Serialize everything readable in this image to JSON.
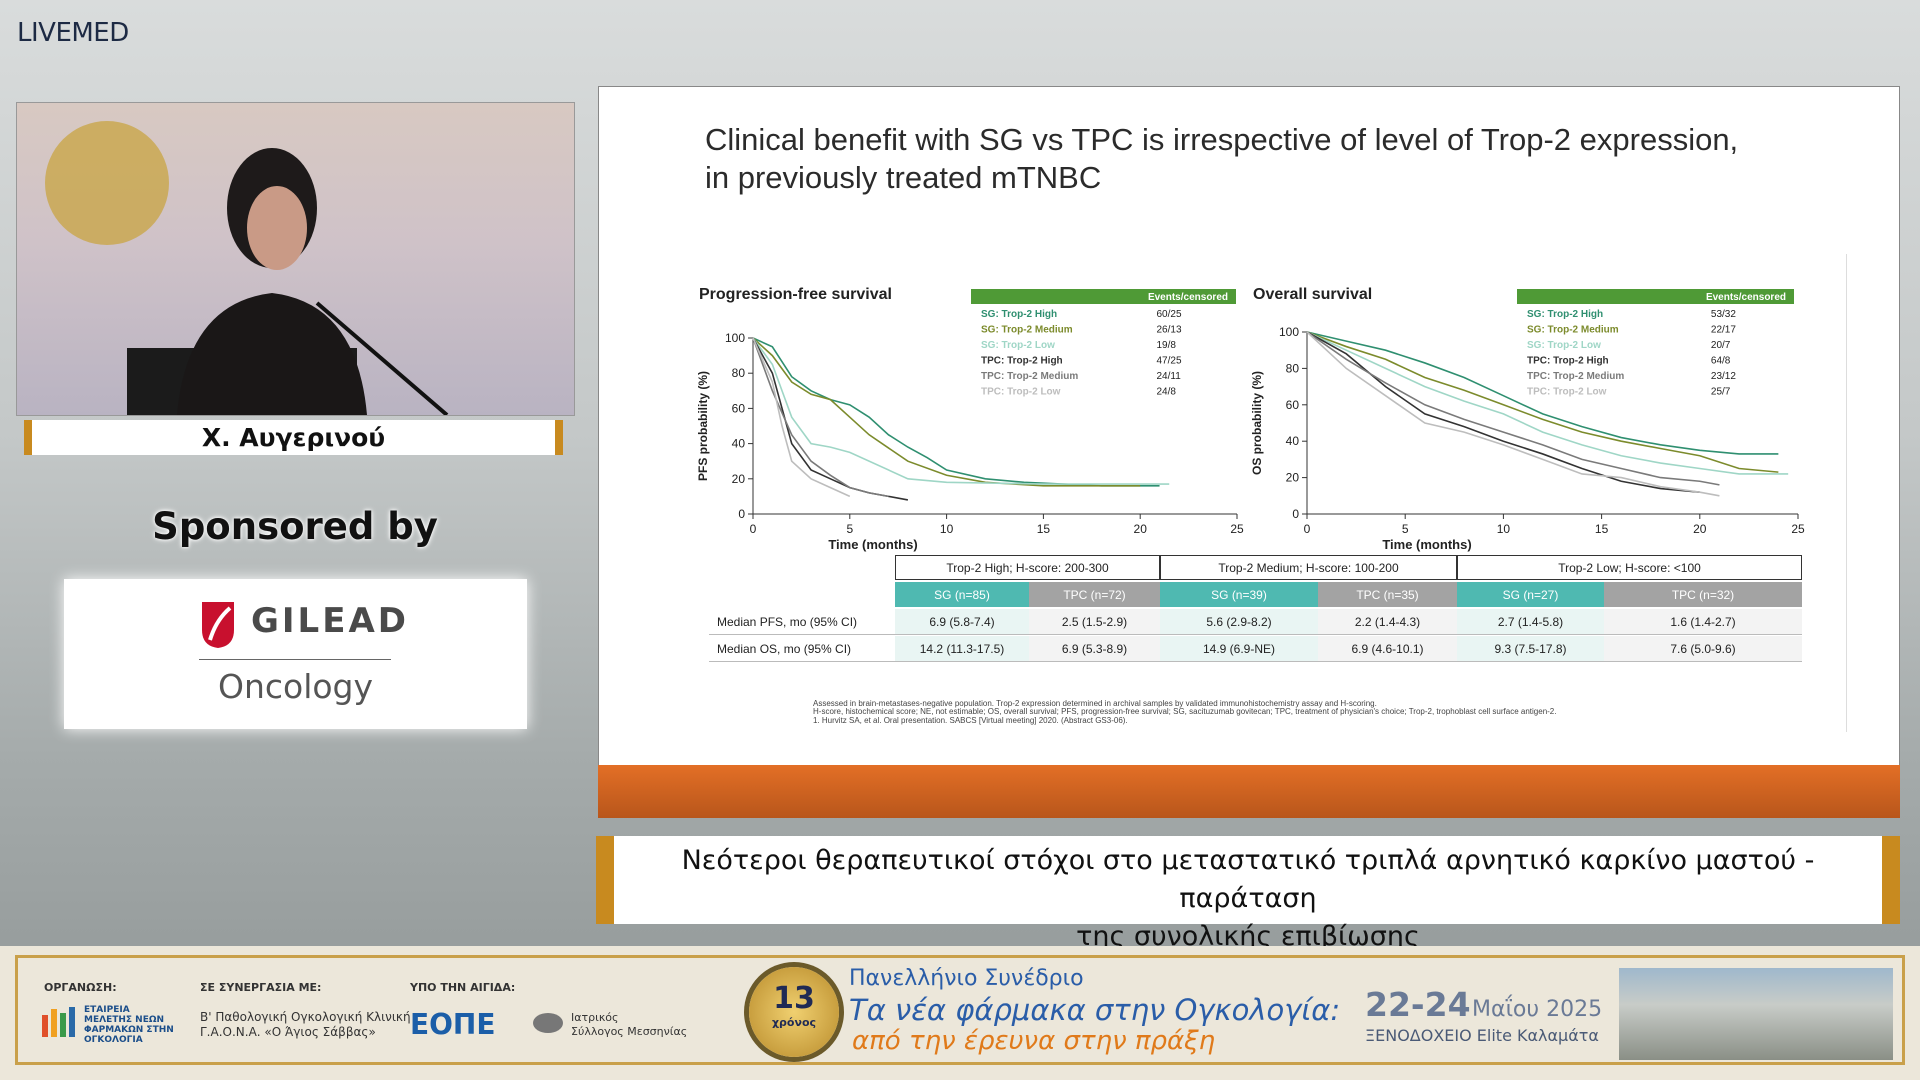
{
  "header": {
    "logo": "LIVEMED"
  },
  "speaker": {
    "name": "Χ. Αυγερινού"
  },
  "sponsor": {
    "label": "Sponsored by",
    "company": "GILEAD",
    "division": "Oncology"
  },
  "slide": {
    "title_line1": "Clinical benefit with SG vs TPC is irrespective of level of Trop-2 expression,",
    "title_line2": "in previously treated mTNBC",
    "table": {
      "groups": [
        "Trop-2 High; H-score: 200-300",
        "Trop-2 Medium; H-score: 100-200",
        "Trop-2 Low; H-score: <100"
      ],
      "subheaders": [
        "SG (n=85)",
        "TPC (n=72)",
        "SG (n=39)",
        "TPC (n=35)",
        "SG (n=27)",
        "TPC (n=32)"
      ],
      "rows": [
        [
          "Median PFS, mo (95% CI)",
          "6.9 (5.8-7.4)",
          "2.5 (1.5-2.9)",
          "5.6 (2.9-8.2)",
          "2.2 (1.4-4.3)",
          "2.7 (1.4-5.8)",
          "1.6 (1.4-2.7)"
        ],
        [
          "Median OS, mo (95% CI)",
          "14.2 (11.3-17.5)",
          "6.9 (5.3-8.9)",
          "14.9 (6.9-NE)",
          "6.9 (4.6-10.1)",
          "9.3 (7.5-17.8)",
          "7.6 (5.0-9.6)"
        ]
      ]
    },
    "footnotes": [
      "Assessed in brain-metastases-negative population. Trop-2 expression determined in archival samples by validated immunohistochemistry assay and H-scoring.",
      "H-score, histochemical score; NE, not estimable; OS, overall survival; PFS, progression-free survival; SG, sacituzumab govitecan; TPC, treatment of physician's choice; Trop-2, trophoblast cell surface antigen-2.",
      "1. Hurvitz SA, et al. Oral presentation. SABCS [Virtual meeting] 2020. (Abstract GS3-06)."
    ]
  },
  "caption": {
    "line1": "Νεότεροι θεραπευτικοί στόχοι στο μεταστατικό τριπλά αρνητικό καρκίνο μαστού - παράταση",
    "line2": "της συνολικής επιβίωσης"
  },
  "banner": {
    "org_label": "ΟΡΓΑΝΩΣΗ:",
    "org_name": "ΕΤΑΙΡΕΙΑ ΜΕΛΕΤΗΣ ΝΕΩΝ ΦΑΡΜΑΚΩΝ ΣΤΗΝ ΟΓΚΟΛΟΓΙΑ",
    "collab_label": "ΣΕ ΣΥΝΕΡΓΑΣΙΑ ΜΕ:",
    "collab_line1": "Β' Παθολογική Ογκολογική Κλινική",
    "collab_line2": "Γ.Α.Ο.Ν.Α. «Ο Άγιος Σάββας»",
    "auspices_label": "ΥΠΟ ΤΗΝ ΑΙΓΙΔΑ:",
    "eope": "ΕΟΠΕ",
    "association_line1": "Ιατρικός",
    "association_line2": "Σύλλογος Μεσσηνίας",
    "badge_number": "13",
    "badge_text": "χρόνος",
    "congress_line1": "Πανελλήνιο Συνέδριο",
    "congress_line2": "Τα νέα φάρμακα στην Ογκολογία:",
    "congress_line3": "από την έρευνα στην πράξη",
    "dates": "22-24",
    "month_year": "Μαΐου 2025",
    "venue": "ΞΕΝΟΔΟΧΕΙΟ Elite Καλαμάτα"
  },
  "chart_data": [
    {
      "type": "line",
      "title": "Progression-free survival",
      "xlabel": "Time (months)",
      "ylabel": "PFS probability (%)",
      "legend_title": "Events/censored",
      "xlim": [
        0,
        25
      ],
      "xticks": [
        0,
        5,
        10,
        15,
        20,
        25
      ],
      "ylim": [
        0,
        100
      ],
      "yticks": [
        0,
        20,
        40,
        60,
        80,
        100
      ],
      "series": [
        {
          "name": "SG: Trop-2 High",
          "events": "60/25",
          "color": "#2f8f70",
          "x": [
            0,
            1,
            2,
            3,
            4,
            5,
            6,
            7,
            8,
            9,
            10,
            12,
            14,
            16,
            18,
            20,
            21
          ],
          "values": [
            100,
            95,
            78,
            70,
            65,
            62,
            55,
            45,
            38,
            32,
            25,
            20,
            18,
            17,
            16,
            16,
            16
          ]
        },
        {
          "name": "SG: Trop-2 Medium",
          "events": "26/13",
          "color": "#7c8b2c",
          "x": [
            0,
            1,
            2,
            3,
            4,
            5,
            6,
            8,
            10,
            12,
            15,
            20
          ],
          "values": [
            100,
            90,
            75,
            68,
            65,
            55,
            45,
            30,
            22,
            18,
            16,
            16
          ]
        },
        {
          "name": "SG: Trop-2 Low",
          "events": "19/8",
          "color": "#9fd6c6",
          "x": [
            0,
            1,
            2,
            3,
            4,
            5,
            8,
            10,
            15,
            20,
            21.5
          ],
          "values": [
            100,
            85,
            55,
            40,
            38,
            35,
            20,
            18,
            17,
            17,
            17
          ]
        },
        {
          "name": "TPC: Trop-2 High",
          "events": "47/25",
          "color": "#333333",
          "x": [
            0,
            1,
            2,
            3,
            4,
            5,
            6,
            7,
            8
          ],
          "values": [
            100,
            80,
            40,
            25,
            20,
            15,
            12,
            10,
            8
          ]
        },
        {
          "name": "TPC: Trop-2 Medium",
          "events": "24/11",
          "color": "#7a7a7a",
          "x": [
            0,
            1,
            2,
            3,
            4,
            5,
            6,
            7
          ],
          "values": [
            100,
            70,
            45,
            30,
            22,
            15,
            12,
            10
          ]
        },
        {
          "name": "TPC: Trop-2 Low",
          "events": "24/8",
          "color": "#bdbdbd",
          "x": [
            0,
            1,
            1.5,
            2,
            3,
            4,
            5
          ],
          "values": [
            100,
            75,
            50,
            30,
            20,
            15,
            10
          ]
        }
      ]
    },
    {
      "type": "line",
      "title": "Overall survival",
      "xlabel": "Time (months)",
      "ylabel": "OS probability (%)",
      "legend_title": "Events/censored",
      "xlim": [
        0,
        25
      ],
      "xticks": [
        0,
        5,
        10,
        15,
        20,
        25
      ],
      "ylim": [
        0,
        100
      ],
      "yticks": [
        0,
        20,
        40,
        60,
        80,
        100
      ],
      "series": [
        {
          "name": "SG: Trop-2 High",
          "events": "53/32",
          "color": "#2f8f70",
          "x": [
            0,
            2,
            4,
            6,
            8,
            10,
            12,
            14,
            16,
            18,
            20,
            22,
            24
          ],
          "values": [
            100,
            95,
            90,
            83,
            75,
            65,
            55,
            48,
            42,
            38,
            35,
            33,
            33
          ]
        },
        {
          "name": "SG: Trop-2 Medium",
          "events": "22/17",
          "color": "#7c8b2c",
          "x": [
            0,
            2,
            4,
            6,
            8,
            10,
            12,
            14,
            16,
            18,
            20,
            22,
            24
          ],
          "values": [
            100,
            92,
            85,
            75,
            68,
            60,
            52,
            45,
            40,
            36,
            32,
            25,
            23
          ]
        },
        {
          "name": "SG: Trop-2 Low",
          "events": "20/7",
          "color": "#9fd6c6",
          "x": [
            0,
            2,
            4,
            6,
            8,
            10,
            12,
            14,
            16,
            18,
            20,
            22,
            24.5
          ],
          "values": [
            100,
            90,
            80,
            70,
            62,
            55,
            45,
            38,
            32,
            28,
            25,
            22,
            22
          ]
        },
        {
          "name": "TPC: Trop-2 High",
          "events": "64/8",
          "color": "#333333",
          "x": [
            0,
            2,
            4,
            6,
            8,
            10,
            12,
            14,
            16,
            18,
            20
          ],
          "values": [
            100,
            88,
            70,
            55,
            48,
            40,
            33,
            25,
            18,
            14,
            12
          ]
        },
        {
          "name": "TPC: Trop-2 Medium",
          "events": "23/12",
          "color": "#7a7a7a",
          "x": [
            0,
            2,
            4,
            6,
            8,
            10,
            12,
            14,
            16,
            18,
            20,
            21
          ],
          "values": [
            100,
            85,
            72,
            60,
            52,
            45,
            38,
            30,
            25,
            20,
            18,
            16
          ]
        },
        {
          "name": "TPC: Trop-2 Low",
          "events": "25/7",
          "color": "#bdbdbd",
          "x": [
            0,
            2,
            4,
            6,
            8,
            10,
            12,
            14,
            16,
            18,
            20,
            21
          ],
          "values": [
            100,
            80,
            65,
            50,
            45,
            38,
            30,
            22,
            20,
            15,
            12,
            10
          ]
        }
      ]
    }
  ]
}
